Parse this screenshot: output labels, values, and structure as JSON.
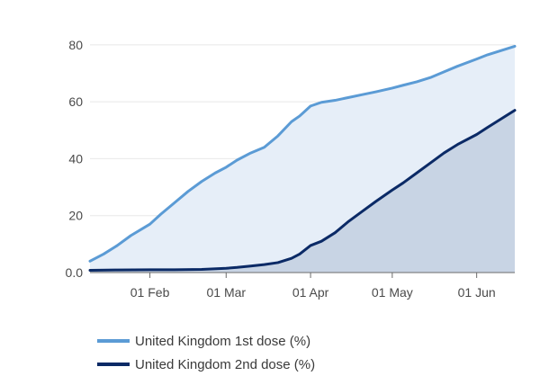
{
  "chart_data": {
    "type": "area",
    "title": "",
    "xlabel": "",
    "ylabel": "",
    "ylim": [
      0,
      85
    ],
    "xlim": [
      "2021-01-10",
      "2021-06-15"
    ],
    "y_ticks": [
      {
        "value": 0,
        "label": "0.0"
      },
      {
        "value": 20,
        "label": "20"
      },
      {
        "value": 40,
        "label": "40"
      },
      {
        "value": 60,
        "label": "60"
      },
      {
        "value": 80,
        "label": "80"
      }
    ],
    "x_ticks": [
      {
        "value": "2021-02-01",
        "label": "01 Feb"
      },
      {
        "value": "2021-03-01",
        "label": "01 Mar"
      },
      {
        "value": "2021-04-01",
        "label": "01 Apr"
      },
      {
        "value": "2021-05-01",
        "label": "01 May"
      },
      {
        "value": "2021-06-01",
        "label": "01 Jun"
      }
    ],
    "grid": "horizontal",
    "legend_position": "bottom-left",
    "series": [
      {
        "name": "United Kingdom 1st dose (%)",
        "color": "#5b9bd5",
        "fill": "#e6eef8",
        "points": [
          [
            "2021-01-10",
            4
          ],
          [
            "2021-01-15",
            6.5
          ],
          [
            "2021-01-20",
            9.5
          ],
          [
            "2021-01-25",
            13
          ],
          [
            "2021-02-01",
            17
          ],
          [
            "2021-02-05",
            20.5
          ],
          [
            "2021-02-10",
            24.5
          ],
          [
            "2021-02-15",
            28.5
          ],
          [
            "2021-02-20",
            32
          ],
          [
            "2021-02-25",
            35
          ],
          [
            "2021-03-01",
            37
          ],
          [
            "2021-03-05",
            39.5
          ],
          [
            "2021-03-10",
            42
          ],
          [
            "2021-03-15",
            44
          ],
          [
            "2021-03-20",
            48
          ],
          [
            "2021-03-25",
            53
          ],
          [
            "2021-03-28",
            55
          ],
          [
            "2021-04-01",
            58.5
          ],
          [
            "2021-04-05",
            59.8
          ],
          [
            "2021-04-10",
            60.5
          ],
          [
            "2021-04-15",
            61.5
          ],
          [
            "2021-04-20",
            62.5
          ],
          [
            "2021-04-25",
            63.5
          ],
          [
            "2021-05-01",
            64.8
          ],
          [
            "2021-05-05",
            65.8
          ],
          [
            "2021-05-10",
            67
          ],
          [
            "2021-05-15",
            68.5
          ],
          [
            "2021-05-20",
            70.5
          ],
          [
            "2021-05-25",
            72.5
          ],
          [
            "2021-06-01",
            75
          ],
          [
            "2021-06-05",
            76.5
          ],
          [
            "2021-06-10",
            78
          ],
          [
            "2021-06-15",
            79.5
          ]
        ]
      },
      {
        "name": "United Kingdom 2nd dose (%)",
        "color": "#0b2a66",
        "fill": "#c8d4e4",
        "points": [
          [
            "2021-01-10",
            0.8
          ],
          [
            "2021-01-20",
            0.9
          ],
          [
            "2021-02-01",
            1
          ],
          [
            "2021-02-10",
            1
          ],
          [
            "2021-02-20",
            1.1
          ],
          [
            "2021-03-01",
            1.5
          ],
          [
            "2021-03-05",
            1.8
          ],
          [
            "2021-03-10",
            2.3
          ],
          [
            "2021-03-15",
            2.8
          ],
          [
            "2021-03-20",
            3.5
          ],
          [
            "2021-03-25",
            5
          ],
          [
            "2021-03-28",
            6.5
          ],
          [
            "2021-04-01",
            9.5
          ],
          [
            "2021-04-05",
            11
          ],
          [
            "2021-04-10",
            14
          ],
          [
            "2021-04-15",
            18
          ],
          [
            "2021-04-20",
            21.5
          ],
          [
            "2021-04-25",
            25
          ],
          [
            "2021-05-01",
            29
          ],
          [
            "2021-05-05",
            31.5
          ],
          [
            "2021-05-10",
            35
          ],
          [
            "2021-05-15",
            38.5
          ],
          [
            "2021-05-20",
            42
          ],
          [
            "2021-05-25",
            45
          ],
          [
            "2021-06-01",
            48.5
          ],
          [
            "2021-06-05",
            51
          ],
          [
            "2021-06-10",
            54
          ],
          [
            "2021-06-15",
            57
          ]
        ]
      }
    ]
  },
  "axis_color": "#6b6b6b",
  "grid_color": "#e8e8e8"
}
